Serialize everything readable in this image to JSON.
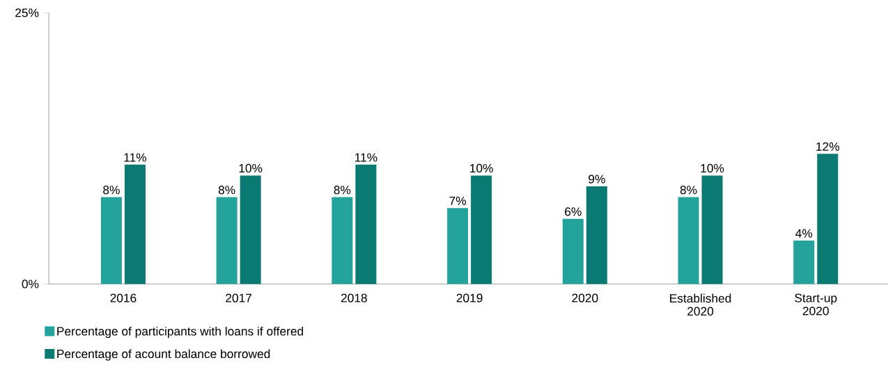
{
  "chart_data": {
    "type": "bar",
    "categories": [
      "2016",
      "2017",
      "2018",
      "2019",
      "2020",
      "Established 2020",
      "Start-up 2020"
    ],
    "series": [
      {
        "name": "Percentage of participants with loans if offered",
        "color": "#23a39b",
        "values": [
          8,
          8,
          8,
          7,
          6,
          8,
          4
        ],
        "value_labels": [
          "8%",
          "8%",
          "8%",
          "7%",
          "6%",
          "8%",
          "4%"
        ]
      },
      {
        "name": "Percentage of acount balance borrowed",
        "color": "#0a7a72",
        "values": [
          11,
          10,
          11,
          10,
          9,
          10,
          12
        ],
        "value_labels": [
          "11%",
          "10%",
          "11%",
          "10%",
          "9%",
          "10%",
          "12%"
        ]
      }
    ],
    "ylim": [
      0,
      25
    ],
    "yticks": [
      {
        "value": 0,
        "label": "0%"
      },
      {
        "value": 25,
        "label": "25%"
      }
    ],
    "grid": false,
    "legend": "bottom left"
  }
}
